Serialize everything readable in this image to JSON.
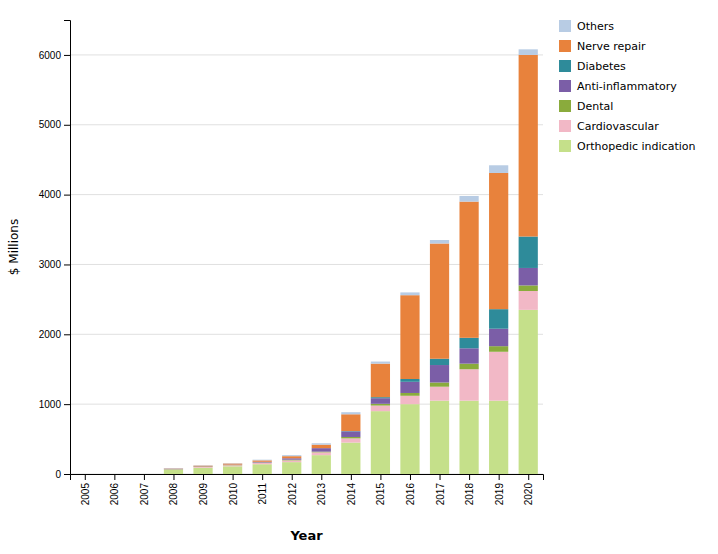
{
  "chart_data": {
    "type": "bar",
    "stacked": true,
    "x": [
      2005,
      2006,
      2007,
      2008,
      2009,
      2010,
      2011,
      2012,
      2013,
      2014,
      2015,
      2016,
      2017,
      2018,
      2019,
      2020
    ],
    "xlim": [
      2004.5,
      2020.5
    ],
    "xticks": [
      2005,
      2006,
      2007,
      2008,
      2009,
      2010,
      2011,
      2012,
      2013,
      2014,
      2015,
      2016,
      2017,
      2018,
      2019,
      2020
    ],
    "ylim": [
      0,
      6500
    ],
    "yticks": [
      0,
      1000,
      2000,
      3000,
      4000,
      5000,
      6000
    ],
    "xlabel": "Year",
    "ylabel": "$ Millions",
    "grid": true,
    "legend": "right",
    "series": [
      {
        "name": "Orthopedic indication",
        "color": "#c5e08a",
        "values": [
          0,
          0,
          0,
          60,
          90,
          110,
          140,
          170,
          270,
          450,
          900,
          1000,
          1050,
          1050,
          1050,
          2350
        ]
      },
      {
        "name": "Cardiovascular",
        "color": "#f2b8c6",
        "values": [
          0,
          0,
          0,
          5,
          10,
          15,
          20,
          25,
          40,
          60,
          80,
          120,
          200,
          450,
          700,
          270
        ]
      },
      {
        "name": "Dental",
        "color": "#8aab3c",
        "values": [
          0,
          0,
          0,
          5,
          5,
          5,
          5,
          10,
          10,
          20,
          25,
          40,
          60,
          80,
          80,
          80
        ]
      },
      {
        "name": "Anti-inflammatory",
        "color": "#7b5ea7",
        "values": [
          0,
          0,
          0,
          5,
          5,
          5,
          10,
          20,
          50,
          80,
          80,
          160,
          250,
          220,
          250,
          250
        ]
      },
      {
        "name": "Diabetes",
        "color": "#2e8b9a",
        "values": [
          0,
          0,
          0,
          0,
          0,
          0,
          0,
          0,
          0,
          5,
          15,
          40,
          90,
          150,
          280,
          450
        ]
      },
      {
        "name": "Nerve repair",
        "color": "#e8823c",
        "values": [
          0,
          0,
          0,
          5,
          10,
          15,
          20,
          30,
          50,
          240,
          480,
          1200,
          1650,
          1950,
          1950,
          2600
        ]
      },
      {
        "name": "Others",
        "color": "#b8cce4",
        "values": [
          0,
          0,
          0,
          5,
          5,
          5,
          10,
          15,
          20,
          30,
          30,
          40,
          50,
          80,
          110,
          80
        ]
      }
    ]
  }
}
